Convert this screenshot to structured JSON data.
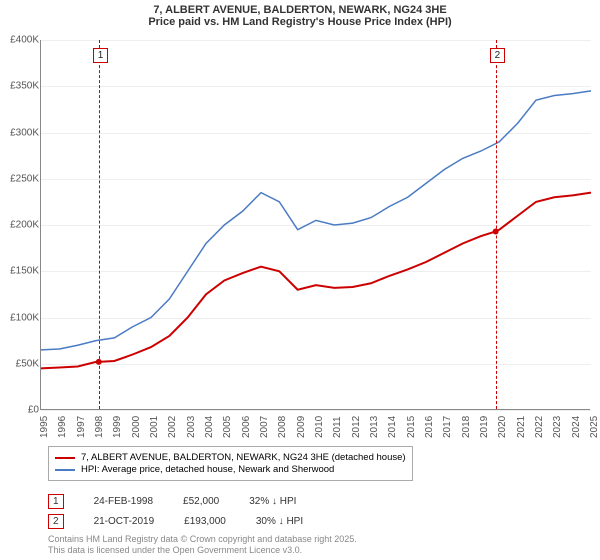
{
  "title": "7, ALBERT AVENUE, BALDERTON, NEWARK, NG24 3HE",
  "subtitle": "Price paid vs. HM Land Registry's House Price Index (HPI)",
  "chart": {
    "type": "line",
    "ylim": [
      0,
      400000
    ],
    "xlim": [
      1995,
      2025
    ],
    "x_ticks": [
      1995,
      1996,
      1997,
      1998,
      1999,
      2000,
      2001,
      2002,
      2003,
      2004,
      2005,
      2006,
      2007,
      2008,
      2009,
      2010,
      2011,
      2012,
      2013,
      2014,
      2015,
      2016,
      2017,
      2018,
      2019,
      2020,
      2021,
      2022,
      2023,
      2024,
      2025
    ],
    "y_ticks": [
      0,
      50000,
      100000,
      150000,
      200000,
      250000,
      300000,
      350000,
      400000
    ],
    "y_tick_labels": [
      "£0",
      "£50K",
      "£100K",
      "£150K",
      "£200K",
      "£250K",
      "£300K",
      "£350K",
      "£400K"
    ],
    "background_color": "#ffffff",
    "grid_color": "#eeeeee",
    "series": {
      "price_paid": {
        "color": "#cc0000",
        "line_width": 2,
        "data": [
          [
            1995,
            45000
          ],
          [
            1996,
            46000
          ],
          [
            1997,
            47000
          ],
          [
            1998,
            52000
          ],
          [
            1998.15,
            52000
          ],
          [
            1999,
            53000
          ],
          [
            2000,
            60000
          ],
          [
            2001,
            68000
          ],
          [
            2002,
            80000
          ],
          [
            2003,
            100000
          ],
          [
            2004,
            125000
          ],
          [
            2005,
            140000
          ],
          [
            2006,
            148000
          ],
          [
            2007,
            155000
          ],
          [
            2008,
            150000
          ],
          [
            2009,
            130000
          ],
          [
            2010,
            135000
          ],
          [
            2011,
            132000
          ],
          [
            2012,
            133000
          ],
          [
            2013,
            137000
          ],
          [
            2014,
            145000
          ],
          [
            2015,
            152000
          ],
          [
            2016,
            160000
          ],
          [
            2017,
            170000
          ],
          [
            2018,
            180000
          ],
          [
            2019,
            188000
          ],
          [
            2019.8,
            193000
          ],
          [
            2020,
            195000
          ],
          [
            2021,
            210000
          ],
          [
            2022,
            225000
          ],
          [
            2023,
            230000
          ],
          [
            2024,
            232000
          ],
          [
            2025,
            235000
          ]
        ]
      },
      "hpi": {
        "color": "#4a7bc4",
        "line_width": 1.5,
        "data": [
          [
            1995,
            65000
          ],
          [
            1996,
            66000
          ],
          [
            1997,
            70000
          ],
          [
            1998,
            75000
          ],
          [
            1999,
            78000
          ],
          [
            2000,
            90000
          ],
          [
            2001,
            100000
          ],
          [
            2002,
            120000
          ],
          [
            2003,
            150000
          ],
          [
            2004,
            180000
          ],
          [
            2005,
            200000
          ],
          [
            2006,
            215000
          ],
          [
            2007,
            235000
          ],
          [
            2008,
            225000
          ],
          [
            2009,
            195000
          ],
          [
            2010,
            205000
          ],
          [
            2011,
            200000
          ],
          [
            2012,
            202000
          ],
          [
            2013,
            208000
          ],
          [
            2014,
            220000
          ],
          [
            2015,
            230000
          ],
          [
            2016,
            245000
          ],
          [
            2017,
            260000
          ],
          [
            2018,
            272000
          ],
          [
            2019,
            280000
          ],
          [
            2020,
            290000
          ],
          [
            2021,
            310000
          ],
          [
            2022,
            335000
          ],
          [
            2023,
            340000
          ],
          [
            2024,
            342000
          ],
          [
            2025,
            345000
          ]
        ]
      }
    },
    "markers": [
      {
        "id": "1",
        "x": 1998.15,
        "y": 52000,
        "vline": true
      },
      {
        "id": "2",
        "x": 2019.8,
        "y": 193000,
        "vline": true
      }
    ]
  },
  "legend": {
    "items": [
      {
        "color": "#cc0000",
        "label": "7, ALBERT AVENUE, BALDERTON, NEWARK, NG24 3HE (detached house)"
      },
      {
        "color": "#4a7bc4",
        "label": "HPI: Average price, detached house, Newark and Sherwood"
      }
    ]
  },
  "transactions": [
    {
      "id": "1",
      "date": "24-FEB-1998",
      "price": "£52,000",
      "delta": "32% ↓ HPI"
    },
    {
      "id": "2",
      "date": "21-OCT-2019",
      "price": "£193,000",
      "delta": "30% ↓ HPI"
    }
  ],
  "footer_line1": "Contains HM Land Registry data © Crown copyright and database right 2025.",
  "footer_line2": "This data is licensed under the Open Government Licence v3.0."
}
